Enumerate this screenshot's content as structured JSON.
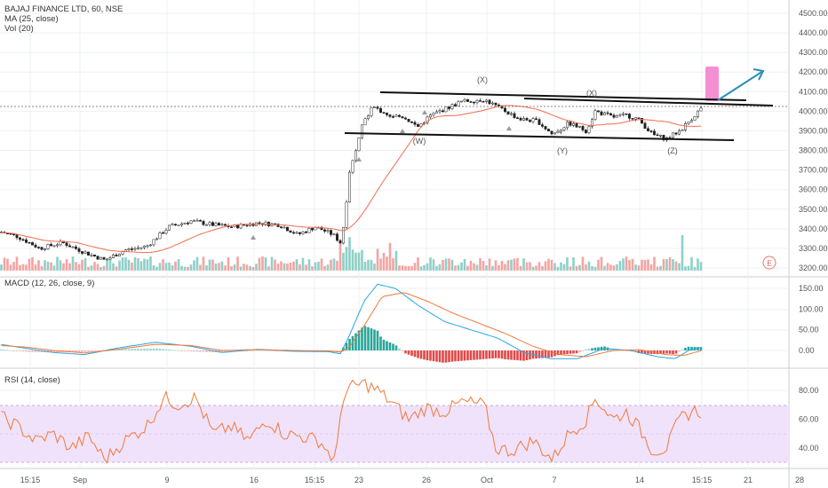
{
  "colors": {
    "up": "#26a69a",
    "down": "#ef5350",
    "ma": "#f26b4f",
    "macd_line": "#2aa6e0",
    "signal_line": "#f2783c",
    "rsi_line": "#f07a3a",
    "rsi_band": "#f0e2fb",
    "marker_box": "#f48fd2",
    "arrow": "#2a8fb5",
    "grid": "#eef0f3"
  },
  "price_panel": {
    "legend": [
      "BAJAJ FINANCE LTD, 60, NSE",
      "MA (25, close)",
      "Vol (20)"
    ],
    "ylabels": [
      "4500.00",
      "4400.00",
      "4300.00",
      "4200.00",
      "4100.00",
      "4000.00",
      "3900.00",
      "3800.00",
      "3700.00",
      "3600.00",
      "3500.00",
      "3400.00",
      "3300.00",
      "3200.00"
    ],
    "wave_labels": [
      "(X)",
      "(W)",
      "(X)",
      "(Y)",
      "(Z)"
    ],
    "event_marker": "E"
  },
  "macd_panel": {
    "legend": "MACD (12, 26, close, 9)",
    "ylabels": [
      "150.00",
      "100.00",
      "50.00",
      "0.00"
    ]
  },
  "rsi_panel": {
    "legend": "RSI (14, close)",
    "ylabels": [
      "80.00",
      "60.00",
      "40.00"
    ]
  },
  "time_axis": {
    "labels": [
      "15:15",
      "Sep",
      "9",
      "16",
      "15:15",
      "23",
      "26",
      "Oct",
      "7",
      "14",
      "15:15",
      "21",
      "28"
    ]
  },
  "chart_data": [
    {
      "type": "candlestick",
      "title": "BAJAJ FINANCE LTD, 60, NSE",
      "ylim": [
        3180,
        4560
      ],
      "approx_close_path": [
        {
          "x": "15:15",
          "y": 3380
        },
        {
          "x": "Sep",
          "y": 3280
        },
        {
          "x": "9",
          "y": 3430
        },
        {
          "x": "16",
          "y": 3420
        },
        {
          "x": "15:15",
          "y": 3360
        },
        {
          "x": "23",
          "y": 4050
        },
        {
          "x": "26",
          "y": 3950
        },
        {
          "x": "Oct",
          "y": 4060
        },
        {
          "x": "7",
          "y": 3900
        },
        {
          "x": "14",
          "y": 3880
        },
        {
          "x": "15:15",
          "y": 4030
        }
      ],
      "overlay": {
        "name": "MA (25, close)"
      },
      "volume_series": "Vol (20)"
    },
    {
      "type": "line",
      "title": "MACD (12, 26, close, 9)",
      "ylim": [
        -25,
        170
      ],
      "series": [
        {
          "values": [
            10,
            -5,
            15,
            5,
            0,
            165,
            80,
            20,
            -20,
            10,
            15
          ]
        },
        {
          "values": [
            8,
            0,
            12,
            8,
            2,
            150,
            100,
            35,
            -10,
            8,
            10
          ]
        }
      ]
    },
    {
      "type": "line",
      "title": "RSI (14, close)",
      "ylim": [
        25,
        90
      ],
      "band": [
        30,
        70
      ],
      "series": [
        {
          "values": [
            62,
            40,
            75,
            55,
            45,
            88,
            60,
            70,
            35,
            45,
            66
          ]
        }
      ]
    }
  ]
}
